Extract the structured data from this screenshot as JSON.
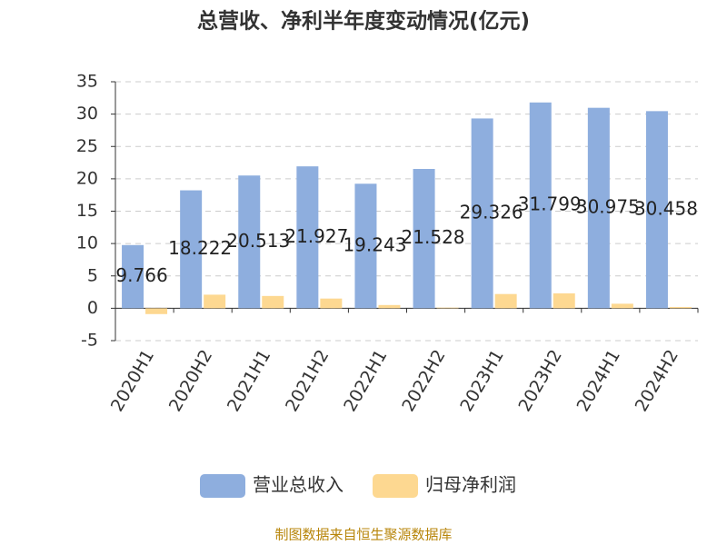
{
  "chart_data": {
    "type": "bar",
    "title": "总营收、净利半年度变动情况(亿元)",
    "categories": [
      "2020H1",
      "2020H2",
      "2021H1",
      "2021H2",
      "2022H1",
      "2022H2",
      "2023H1",
      "2023H2",
      "2024H1",
      "2024H2"
    ],
    "series": [
      {
        "name": "营业总收入",
        "color": "#8eaede",
        "values": [
          9.766,
          18.222,
          20.513,
          21.927,
          19.243,
          21.528,
          29.326,
          31.799,
          30.975,
          30.458
        ],
        "show_labels": true
      },
      {
        "name": "归母净利润",
        "color": "#fdd891",
        "values": [
          -0.9,
          2.1,
          1.9,
          1.5,
          0.5,
          0.1,
          2.2,
          2.3,
          0.7,
          0.2
        ],
        "show_labels": false
      }
    ],
    "ylim": [
      -5,
      35
    ],
    "yticks": [
      -5,
      0,
      5,
      10,
      15,
      20,
      25,
      30,
      35
    ],
    "grid": true,
    "legend": "bottom",
    "source": "制图数据来自恒生聚源数据库"
  }
}
